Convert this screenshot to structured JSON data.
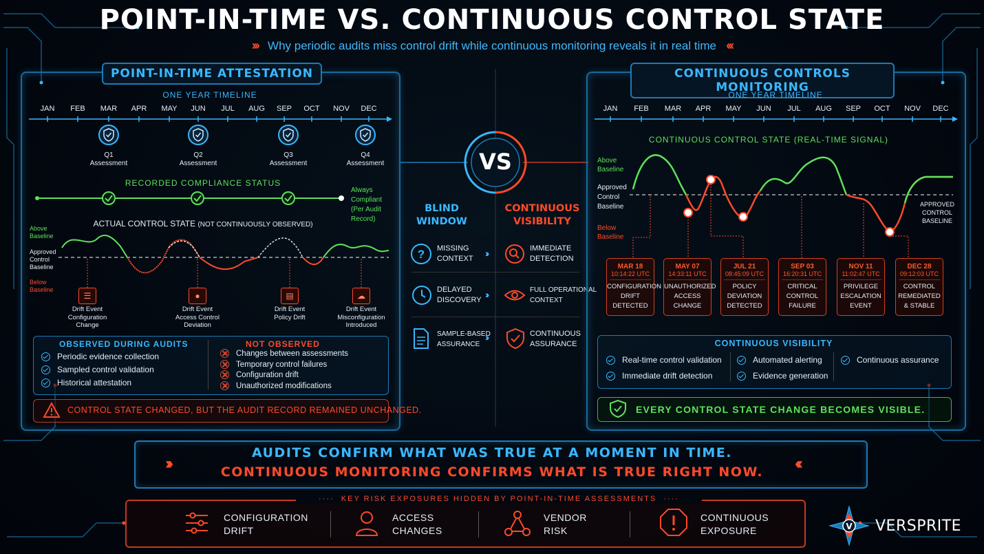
{
  "header": {
    "title": "POINT-IN-TIME VS. CONTINUOUS CONTROL STATE",
    "subtitle": "Why periodic audits miss control drift while continuous monitoring reveals it in real time"
  },
  "left": {
    "title": "POINT-IN-TIME ATTESTATION",
    "timeline_label": "ONE YEAR TIMELINE",
    "months": [
      "JAN",
      "FEB",
      "MAR",
      "APR",
      "MAY",
      "JUN",
      "JUL",
      "AUG",
      "SEP",
      "OCT",
      "NOV",
      "DEC"
    ],
    "assessments": [
      {
        "q": "Q1",
        "label": "Assessment"
      },
      {
        "q": "Q2",
        "label": "Assessment"
      },
      {
        "q": "Q3",
        "label": "Assessment"
      },
      {
        "q": "Q4",
        "label": "Assessment"
      }
    ],
    "recorded_label": "RECORDED COMPLIANCE STATUS",
    "always_compliant": [
      "Always",
      "Compliant",
      "(Per Audit",
      "Record)"
    ],
    "actual_label": "ACTUAL CONTROL STATE",
    "actual_note": "(NOT CONTINUOUSLY OBSERVED)",
    "above": [
      "Above",
      "Baseline"
    ],
    "approved": [
      "Approved",
      "Control",
      "Baseline"
    ],
    "below": [
      "Below",
      "Baseline"
    ],
    "drift_events": [
      {
        "l1": "Drift Event",
        "l2": "Configuration",
        "l3": "Change"
      },
      {
        "l1": "Drift Event",
        "l2": "Access Control",
        "l3": "Deviation"
      },
      {
        "l1": "Drift Event",
        "l2": "Policy Drift",
        "l3": ""
      },
      {
        "l1": "Drift Event",
        "l2": "Misconfiguration",
        "l3": "Introduced"
      }
    ],
    "observed_title": "OBSERVED DURING AUDITS",
    "observed": [
      "Periodic evidence collection",
      "Sampled control validation",
      "Historical attestation"
    ],
    "not_observed_title": "NOT OBSERVED",
    "not_observed": [
      "Changes between assessments",
      "Temporary control failures",
      "Configuration drift",
      "Unauthorized modifications"
    ],
    "warning": "CONTROL STATE CHANGED, BUT THE AUDIT RECORD REMAINED UNCHANGED."
  },
  "middle": {
    "vs": "VS",
    "blind": [
      "BLIND",
      "WINDOW"
    ],
    "continuous": [
      "CONTINUOUS",
      "VISIBILITY"
    ],
    "rows": [
      {
        "left": [
          "MISSING",
          "CONTEXT"
        ],
        "right": [
          "IMMEDIATE",
          "DETECTION"
        ]
      },
      {
        "left": [
          "DELAYED",
          "DISCOVERY"
        ],
        "right": [
          "FULL OPERATIONAL",
          "CONTEXT"
        ]
      },
      {
        "left": [
          "SAMPLE-BASED",
          "ASSURANCE"
        ],
        "right": [
          "CONTINUOUS",
          "ASSURANCE"
        ]
      }
    ]
  },
  "right": {
    "title": "CONTINUOUS CONTROLS MONITORING",
    "timeline_label": "ONE YEAR TIMELINE",
    "months": [
      "JAN",
      "FEB",
      "MAR",
      "APR",
      "MAY",
      "JUN",
      "JUL",
      "AUG",
      "SEP",
      "OCT",
      "NOV",
      "DEC"
    ],
    "signal_label": "CONTINUOUS CONTROL STATE (REAL-TIME SIGNAL)",
    "above": [
      "Above",
      "Baseline"
    ],
    "approved": [
      "Approved",
      "Control",
      "Baseline"
    ],
    "below": [
      "Below",
      "Baseline"
    ],
    "approved_right": [
      "APPROVED",
      "CONTROL",
      "BASELINE"
    ],
    "events": [
      {
        "date": "MAR 18",
        "time": "10:14:22 UTC",
        "l1": "CONFIGURATION",
        "l2": "DRIFT",
        "l3": "DETECTED"
      },
      {
        "date": "MAY 07",
        "time": "14:33:11 UTC",
        "l1": "UNAUTHORIZED",
        "l2": "ACCESS",
        "l3": "CHANGE"
      },
      {
        "date": "JUL 21",
        "time": "08:45:09 UTC",
        "l1": "POLICY",
        "l2": "DEVIATION",
        "l3": "DETECTED"
      },
      {
        "date": "SEP 03",
        "time": "16:20:31 UTC",
        "l1": "CRITICAL",
        "l2": "CONTROL",
        "l3": "FAILURE"
      },
      {
        "date": "NOV 11",
        "time": "11:02:47 UTC",
        "l1": "PRIVILEGE",
        "l2": "ESCALATION",
        "l3": "EVENT"
      },
      {
        "date": "DEC 28",
        "time": "09:12:03 UTC",
        "l1": "CONTROL",
        "l2": "REMEDIATED",
        "l3": "& STABLE"
      }
    ],
    "visibility_title": "CONTINUOUS VISIBILITY",
    "visibility": [
      "Real-time control validation",
      "Immediate drift detection",
      "Automated alerting",
      "Evidence generation",
      "Continuous assurance"
    ],
    "banner": "EVERY CONTROL STATE CHANGE BECOMES VISIBLE."
  },
  "bottom": {
    "quote1": "AUDITS CONFIRM WHAT WAS TRUE AT A MOMENT IN TIME.",
    "quote2": "CONTINUOUS MONITORING CONFIRMS WHAT IS TRUE RIGHT NOW.",
    "risk_title": "KEY RISK EXPOSURES HIDDEN BY POINT-IN-TIME ASSESSMENTS",
    "risks": [
      {
        "l1": "CONFIGURATION",
        "l2": "DRIFT"
      },
      {
        "l1": "ACCESS",
        "l2": "CHANGES"
      },
      {
        "l1": "VENDOR",
        "l2": "RISK"
      },
      {
        "l1": "CONTINUOUS",
        "l2": "EXPOSURE"
      }
    ],
    "logo": "VERSPRITE"
  },
  "colors": {
    "blue": "#3ab8ff",
    "red": "#ff4a2a",
    "green": "#5ee25a",
    "white": "#e6eef5"
  }
}
